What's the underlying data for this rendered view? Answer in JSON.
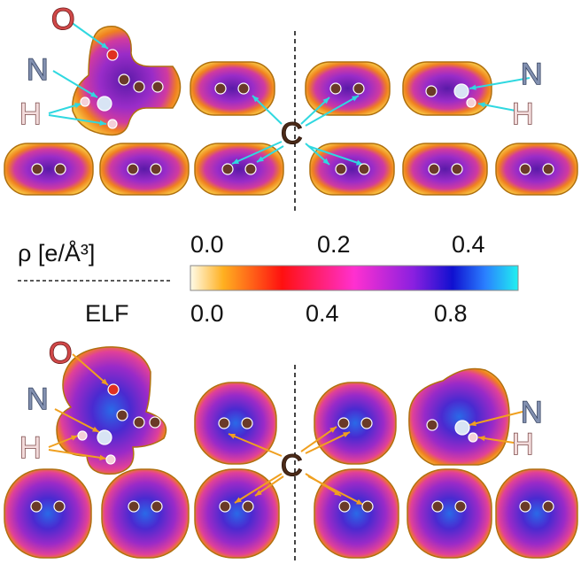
{
  "top_panel": {
    "labels": [
      "O",
      "N",
      "H",
      "C",
      "N",
      "H"
    ]
  },
  "colorbar": {
    "density_label": "ρ [e/Å³]",
    "density_ticks": [
      "0.0",
      "0.2",
      "0.4"
    ],
    "elf_label": "ELF",
    "elf_ticks": [
      "0.0",
      "0.4",
      "0.8"
    ]
  },
  "bottom_panel": {
    "labels": [
      "O",
      "N",
      "H",
      "C",
      "N",
      "H"
    ]
  }
}
